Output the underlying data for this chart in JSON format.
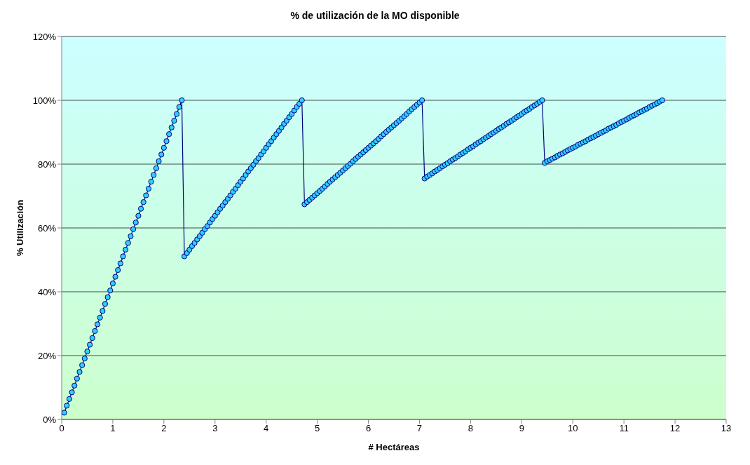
{
  "chart_data": {
    "type": "line",
    "title": "% de utilización de la MO disponible",
    "xlabel": "# Hectáreas",
    "ylabel": "% Utilización",
    "x": [
      0.05,
      0.1,
      0.15,
      0.2,
      0.25,
      0.3,
      0.35,
      0.4,
      0.45,
      0.5,
      0.55,
      0.6,
      0.65,
      0.7,
      0.75,
      0.8,
      0.85,
      0.9,
      0.95,
      1,
      1.05,
      1.1,
      1.15,
      1.2,
      1.25,
      1.3,
      1.35,
      1.4,
      1.45,
      1.5,
      1.55,
      1.6,
      1.65,
      1.7,
      1.75,
      1.8,
      1.85,
      1.9,
      1.95,
      2,
      2.05,
      2.1,
      2.15,
      2.2,
      2.25,
      2.3,
      2.35,
      2.4,
      2.45,
      2.5,
      2.55,
      2.6,
      2.65,
      2.7,
      2.75,
      2.8,
      2.85,
      2.9,
      2.95,
      3,
      3.05,
      3.1,
      3.15,
      3.2,
      3.25,
      3.3,
      3.35,
      3.4,
      3.45,
      3.5,
      3.55,
      3.6,
      3.65,
      3.7,
      3.75,
      3.8,
      3.85,
      3.9,
      3.95,
      4,
      4.05,
      4.1,
      4.15,
      4.2,
      4.25,
      4.3,
      4.35,
      4.4,
      4.45,
      4.5,
      4.55,
      4.6,
      4.65,
      4.7,
      4.75,
      4.8,
      4.85,
      4.9,
      4.95,
      5,
      5.05,
      5.1,
      5.15,
      5.2,
      5.25,
      5.3,
      5.35,
      5.4,
      5.45,
      5.5,
      5.55,
      5.6,
      5.65,
      5.7,
      5.75,
      5.8,
      5.85,
      5.9,
      5.95,
      6,
      6.05,
      6.1,
      6.15,
      6.2,
      6.25,
      6.3,
      6.35,
      6.4,
      6.45,
      6.5,
      6.55,
      6.6,
      6.65,
      6.7,
      6.75,
      6.8,
      6.85,
      6.9,
      6.95,
      7,
      7.05,
      7.1,
      7.15,
      7.2,
      7.25,
      7.3,
      7.35,
      7.4,
      7.45,
      7.5,
      7.55,
      7.6,
      7.65,
      7.7,
      7.75,
      7.8,
      7.85,
      7.9,
      7.95,
      8,
      8.05,
      8.1,
      8.15,
      8.2,
      8.25,
      8.3,
      8.35,
      8.4,
      8.45,
      8.5,
      8.55,
      8.6,
      8.65,
      8.7,
      8.75,
      8.8,
      8.85,
      8.9,
      8.95,
      9,
      9.05,
      9.1,
      9.15,
      9.2,
      9.25,
      9.3,
      9.35,
      9.4,
      9.45,
      9.5,
      9.55,
      9.6,
      9.65,
      9.7,
      9.75,
      9.8,
      9.85,
      9.9,
      9.95,
      10,
      10.05,
      10.1,
      10.15,
      10.2,
      10.25,
      10.3,
      10.35,
      10.4,
      10.45,
      10.5,
      10.55,
      10.6,
      10.65,
      10.7,
      10.75,
      10.8,
      10.85,
      10.9,
      10.95,
      11,
      11.05,
      11.1,
      11.15,
      11.2,
      11.25,
      11.3,
      11.35,
      11.4,
      11.45,
      11.5,
      11.55,
      11.6,
      11.65,
      11.7,
      11.75
    ],
    "values": [
      2.1,
      4.3,
      6.4,
      8.5,
      10.6,
      12.8,
      14.9,
      17.0,
      19.1,
      21.3,
      23.4,
      25.5,
      27.7,
      29.8,
      31.9,
      34.0,
      36.2,
      38.3,
      40.4,
      42.6,
      44.7,
      46.8,
      48.9,
      51.1,
      53.2,
      55.3,
      57.4,
      59.6,
      61.7,
      63.8,
      66.0,
      68.1,
      70.2,
      72.3,
      74.5,
      76.6,
      78.7,
      80.9,
      83.0,
      85.1,
      87.2,
      89.4,
      91.5,
      93.6,
      95.7,
      97.9,
      100,
      51.1,
      52.1,
      53.2,
      54.3,
      55.3,
      56.4,
      57.4,
      58.5,
      59.6,
      60.6,
      61.7,
      62.8,
      63.8,
      64.9,
      66.0,
      67.0,
      68.1,
      69.1,
      70.2,
      71.3,
      72.3,
      73.4,
      74.5,
      75.5,
      76.6,
      77.7,
      78.7,
      79.8,
      80.9,
      81.9,
      83.0,
      84.0,
      85.1,
      86.2,
      87.2,
      88.3,
      89.4,
      90.4,
      91.5,
      92.6,
      93.6,
      94.7,
      95.7,
      96.8,
      97.9,
      98.9,
      100,
      67.4,
      68.1,
      68.8,
      69.5,
      70.2,
      70.9,
      71.6,
      72.3,
      73.0,
      73.8,
      74.5,
      75.2,
      75.9,
      76.6,
      77.3,
      78.0,
      78.7,
      79.4,
      80.1,
      80.9,
      81.6,
      82.3,
      83.0,
      83.7,
      84.4,
      85.1,
      85.8,
      86.5,
      87.2,
      87.9,
      88.7,
      89.4,
      90.1,
      90.8,
      91.5,
      92.2,
      92.9,
      93.6,
      94.3,
      95.0,
      95.7,
      96.5,
      97.2,
      97.9,
      98.6,
      99.3,
      100,
      75.5,
      76.1,
      76.6,
      77.1,
      77.7,
      78.2,
      78.7,
      79.3,
      79.8,
      80.3,
      80.9,
      81.4,
      81.9,
      82.4,
      83.0,
      83.5,
      84.0,
      84.6,
      85.1,
      85.6,
      86.2,
      86.7,
      87.2,
      87.8,
      88.3,
      88.8,
      89.4,
      89.9,
      90.4,
      91.0,
      91.5,
      92.0,
      92.6,
      93.1,
      93.6,
      94.1,
      94.7,
      95.2,
      95.7,
      96.3,
      96.8,
      97.3,
      97.9,
      98.4,
      98.9,
      99.5,
      100,
      80.4,
      80.9,
      81.3,
      81.7,
      82.1,
      82.6,
      83.0,
      83.4,
      83.8,
      84.3,
      84.7,
      85.1,
      85.5,
      86.0,
      86.4,
      86.8,
      87.2,
      87.7,
      88.1,
      88.5,
      88.9,
      89.4,
      89.8,
      90.2,
      90.6,
      91.1,
      91.5,
      91.9,
      92.3,
      92.8,
      93.2,
      93.6,
      94.0,
      94.5,
      94.9,
      95.3,
      95.7,
      96.2,
      96.6,
      97.0,
      97.4,
      97.9,
      98.3,
      98.7,
      99.1,
      99.6,
      100
    ],
    "color": "#000080",
    "marker": "circle",
    "line_style": "solid",
    "grid": "y",
    "legend": false,
    "xlim": [
      0,
      13
    ],
    "xticks": [
      0,
      1,
      2,
      3,
      4,
      5,
      6,
      7,
      8,
      9,
      10,
      11,
      12,
      13
    ],
    "ylim": [
      0,
      120
    ],
    "yticks": [
      {
        "value": 0,
        "label": "0%"
      },
      {
        "value": 20,
        "label": "20%"
      },
      {
        "value": 40,
        "label": "40%"
      },
      {
        "value": 60,
        "label": "60%"
      },
      {
        "value": 80,
        "label": "80%"
      },
      {
        "value": 100,
        "label": "100%"
      },
      {
        "value": 120,
        "label": "120%"
      }
    ]
  }
}
